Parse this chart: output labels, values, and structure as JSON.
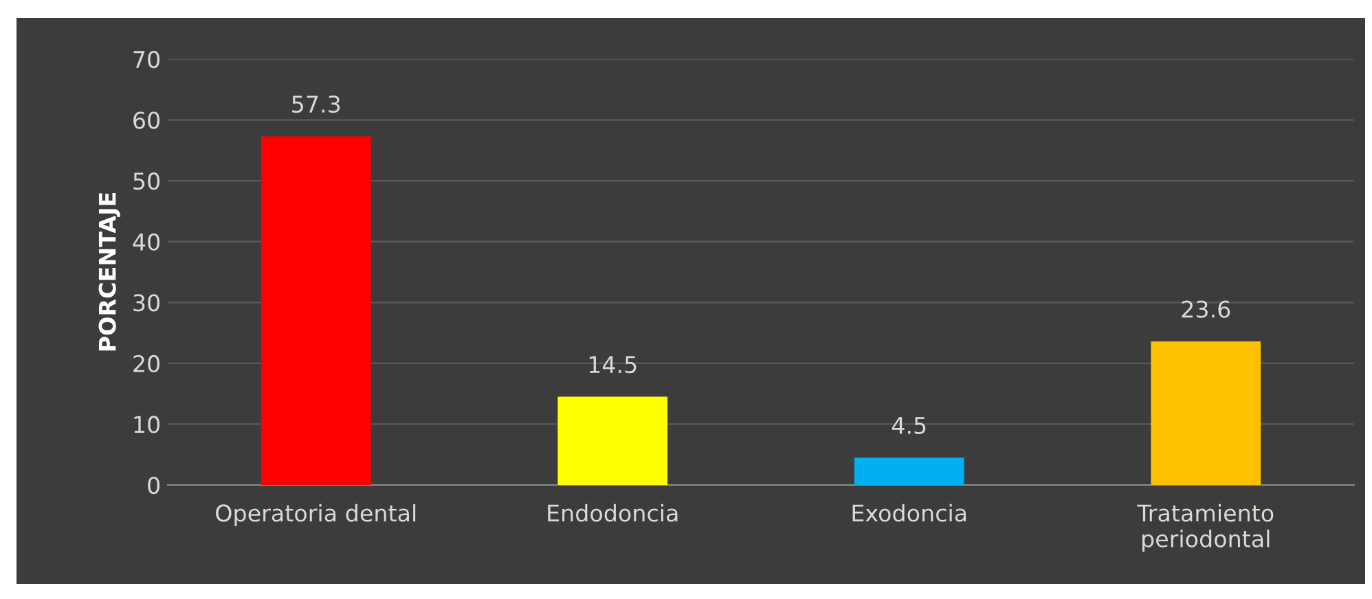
{
  "chart_data": {
    "type": "bar",
    "ylabel": "PORCENTAJE",
    "categories": [
      "Operatoria dental",
      "Endodoncia",
      "Exodoncia",
      "Tratamiento\nperiodontal"
    ],
    "values": [
      57.3,
      14.5,
      4.5,
      23.6
    ],
    "colors": [
      "#ff0000",
      "#ffff00",
      "#00b0f0",
      "#ffc000"
    ],
    "ylim": [
      0,
      70
    ],
    "yticks": [
      0,
      10,
      20,
      30,
      40,
      50,
      60,
      70
    ],
    "grid": "y",
    "data_labels": true
  }
}
